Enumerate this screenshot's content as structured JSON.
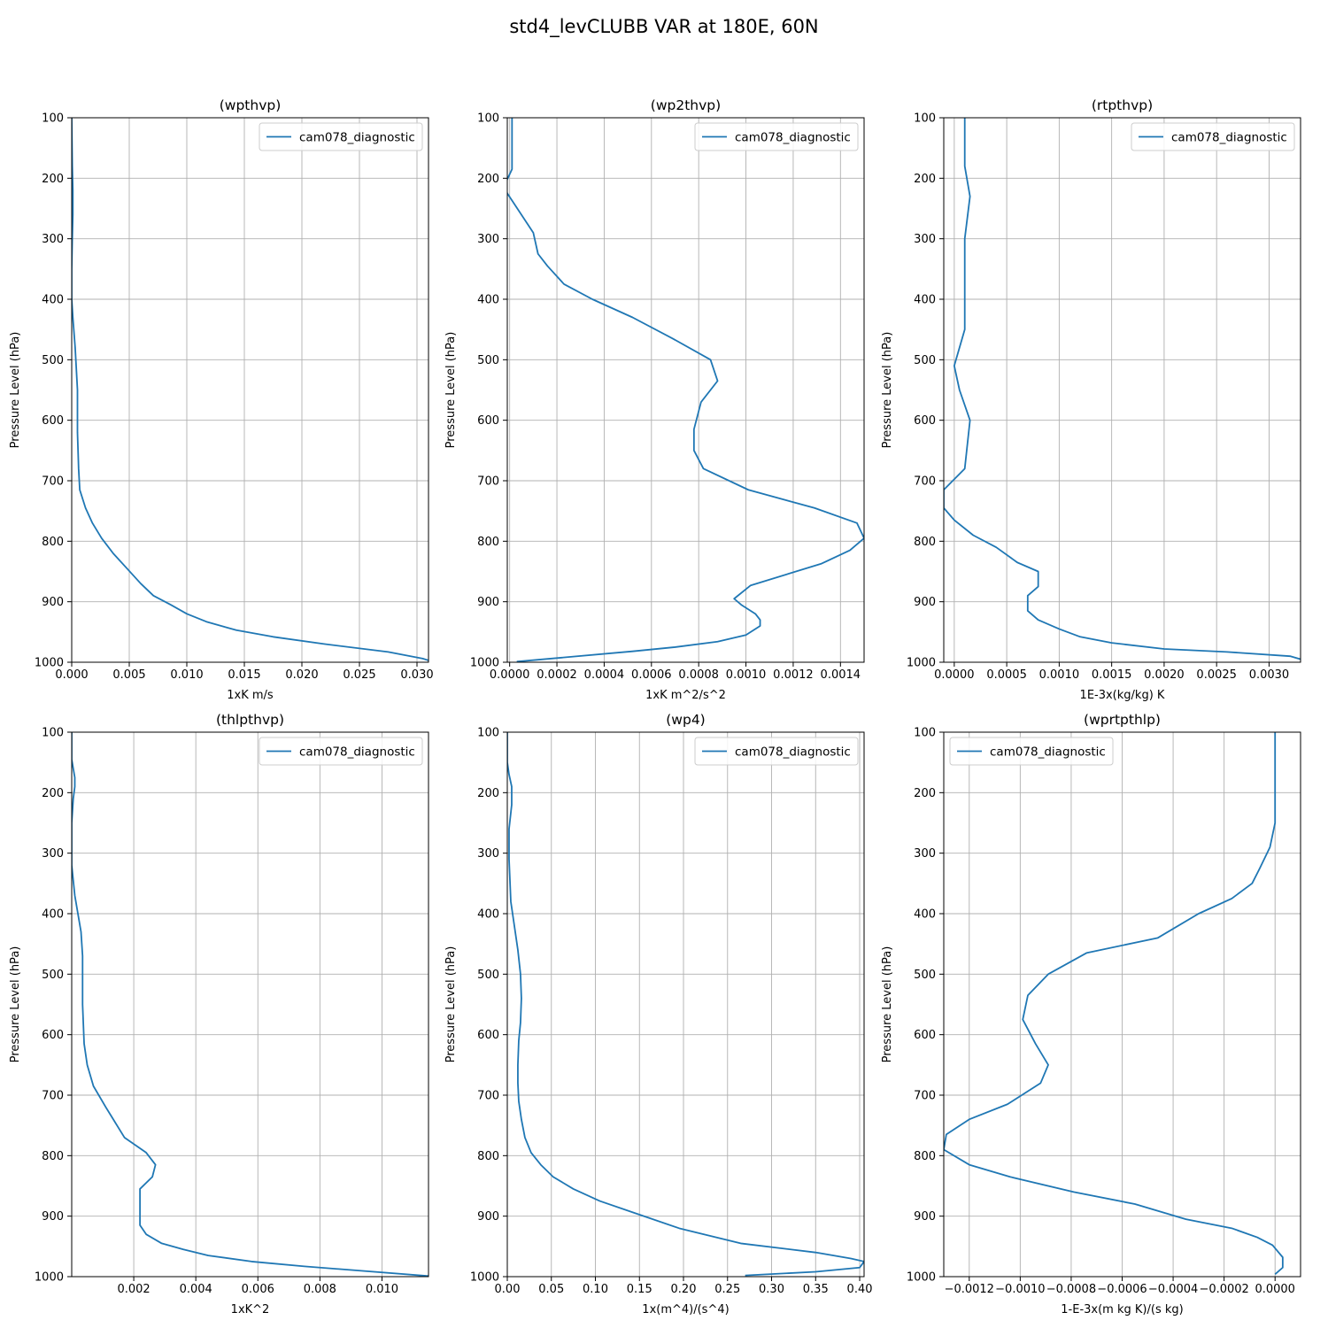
{
  "figure_title": "std4_levCLUBB VAR at 180E, 60N",
  "colors": {
    "series": "#1f77b4",
    "grid": "#b0b0b0",
    "frame": "#000000"
  },
  "chart_data": [
    {
      "type": "line",
      "title": "(wpthvp)",
      "xlabel": "1xK m/s",
      "ylabel": "Pressure Level (hPa)",
      "xlim": [
        0.0,
        0.031
      ],
      "ylim": [
        1000,
        100
      ],
      "y_inverted": true,
      "grid": true,
      "legend_position": "upper right",
      "xticks": [
        0.0,
        0.005,
        0.01,
        0.015,
        0.02,
        0.025,
        0.03
      ],
      "xtick_labels": [
        "0.000",
        "0.005",
        "0.010",
        "0.015",
        "0.020",
        "0.025",
        "0.030"
      ],
      "yticks": [
        100,
        200,
        300,
        400,
        500,
        600,
        700,
        800,
        900,
        1000
      ],
      "series": [
        {
          "name": "cam078_diagnostic",
          "x": [
            0.0,
            5e-05,
            0.0001,
            0.0001,
            5e-05,
            0.0,
            0.0,
            0.0001,
            0.0003,
            0.0005,
            0.0005,
            0.0006,
            0.0007,
            0.0012,
            0.0018,
            0.0026,
            0.0036,
            0.0048,
            0.006,
            0.0071,
            0.0086,
            0.01,
            0.0117,
            0.0143,
            0.0175,
            0.022,
            0.0275,
            0.0305,
            0.031
          ],
          "y": [
            100,
            180,
            220,
            260,
            300,
            350,
            400,
            430,
            480,
            550,
            620,
            680,
            715,
            745,
            770,
            795,
            820,
            845,
            870,
            890,
            905,
            920,
            933,
            947,
            958,
            970,
            983,
            994,
            997
          ]
        }
      ]
    },
    {
      "type": "line",
      "title": "(wp2thvp)",
      "xlabel": "1xK m^2/s^2",
      "ylabel": "Pressure Level (hPa)",
      "xlim": [
        -1e-05,
        0.0015
      ],
      "ylim": [
        1000,
        100
      ],
      "y_inverted": true,
      "grid": true,
      "legend_position": "upper right",
      "xticks": [
        0.0,
        0.0002,
        0.0004,
        0.0006,
        0.0008,
        0.001,
        0.0012,
        0.0014
      ],
      "xtick_labels": [
        "0.0000",
        "0.0002",
        "0.0004",
        "0.0006",
        "0.0008",
        "0.0010",
        "0.0012",
        "0.0014"
      ],
      "yticks": [
        100,
        200,
        300,
        400,
        500,
        600,
        700,
        800,
        900,
        1000
      ],
      "series": [
        {
          "name": "cam078_diagnostic",
          "x": [
            1e-05,
            1e-05,
            1e-05,
            1e-05,
            -2e-05,
            -1e-05,
            0.0001,
            0.00012,
            0.00016,
            0.00023,
            0.00035,
            0.00052,
            0.00069,
            0.00085,
            0.00088,
            0.00081,
            0.00078,
            0.00078,
            0.00082,
            0.00101,
            0.00129,
            0.00147,
            0.0015,
            0.00144,
            0.00132,
            0.00102,
            0.00095,
            0.00098,
            0.00104,
            0.00106,
            0.00106,
            0.001,
            0.00088,
            0.0007,
            0.00052,
            3e-05
          ],
          "y": [
            100,
            150,
            180,
            185,
            210,
            225,
            290,
            325,
            345,
            375,
            400,
            430,
            465,
            500,
            535,
            570,
            615,
            650,
            680,
            715,
            745,
            770,
            795,
            815,
            837,
            873,
            895,
            905,
            920,
            930,
            940,
            955,
            966,
            975,
            982,
            999
          ]
        }
      ]
    },
    {
      "type": "line",
      "title": "(rtpthvp)",
      "xlabel": "1E-3x(kg/kg) K",
      "ylabel": "Pressure Level (hPa)",
      "xlim": [
        -0.0001,
        0.0033
      ],
      "ylim": [
        1000,
        100
      ],
      "y_inverted": true,
      "grid": true,
      "legend_position": "upper right",
      "xticks": [
        0.0,
        0.0005,
        0.001,
        0.0015,
        0.002,
        0.0025,
        0.003
      ],
      "xtick_labels": [
        "0.0000",
        "0.0005",
        "0.0010",
        "0.0015",
        "0.0020",
        "0.0025",
        "0.0030"
      ],
      "yticks": [
        100,
        200,
        300,
        400,
        500,
        600,
        700,
        800,
        900,
        1000
      ],
      "series": [
        {
          "name": "cam078_diagnostic",
          "x": [
            0.0001,
            0.0001,
            0.00015,
            0.0001,
            0.0001,
            0.0001,
            5e-05,
            0.0,
            5e-05,
            0.00015,
            0.0001,
            -0.0001,
            -0.0001,
            -0.0001,
            0.0,
            0.00018,
            0.0004,
            0.0006,
            0.0008,
            0.0008,
            0.0007,
            0.0007,
            0.0008,
            0.001,
            0.0012,
            0.0015,
            0.002,
            0.0026,
            0.0032,
            0.0033
          ],
          "y": [
            100,
            180,
            230,
            300,
            400,
            450,
            480,
            510,
            550,
            600,
            680,
            715,
            740,
            745,
            765,
            790,
            810,
            835,
            850,
            875,
            890,
            915,
            930,
            945,
            958,
            968,
            978,
            983,
            990,
            995
          ]
        }
      ]
    },
    {
      "type": "line",
      "title": "(thlpthvp)",
      "xlabel": "1xK^2",
      "ylabel": "Pressure Level (hPa)",
      "xlim": [
        0.0,
        0.0115
      ],
      "ylim": [
        1000,
        100
      ],
      "y_inverted": true,
      "grid": true,
      "legend_position": "upper right",
      "xticks": [
        0.002,
        0.004,
        0.006,
        0.008,
        0.01
      ],
      "xtick_labels": [
        "0.002",
        "0.004",
        "0.006",
        "0.008",
        "0.010"
      ],
      "yticks": [
        100,
        200,
        300,
        400,
        500,
        600,
        700,
        800,
        900,
        1000
      ],
      "series": [
        {
          "name": "cam078_diagnostic",
          "x": [
            0.0,
            0.0,
            5e-05,
            0.0001,
            0.0001,
            5e-05,
            0.0,
            0.0,
            0.0001,
            0.0003,
            0.00035,
            0.00035,
            0.0004,
            0.0005,
            0.0007,
            0.0011,
            0.0014,
            0.0017,
            0.0024,
            0.0027,
            0.0026,
            0.0022,
            0.0022,
            0.0022,
            0.0024,
            0.0029,
            0.0036,
            0.0044,
            0.0058,
            0.0075,
            0.0115
          ],
          "y": [
            100,
            145,
            160,
            175,
            190,
            210,
            250,
            320,
            370,
            430,
            470,
            550,
            615,
            650,
            685,
            720,
            745,
            770,
            795,
            815,
            835,
            855,
            875,
            915,
            930,
            945,
            955,
            965,
            975,
            983,
            999
          ]
        }
      ]
    },
    {
      "type": "line",
      "title": "(wp4)",
      "xlabel": "1x(m^4)/(s^4)",
      "ylabel": "Pressure Level (hPa)",
      "xlim": [
        0.0,
        0.405
      ],
      "ylim": [
        1000,
        100
      ],
      "y_inverted": true,
      "grid": true,
      "legend_position": "upper right",
      "xticks": [
        0.0,
        0.05,
        0.1,
        0.15,
        0.2,
        0.25,
        0.3,
        0.35,
        0.4
      ],
      "xtick_labels": [
        "0.00",
        "0.05",
        "0.10",
        "0.15",
        "0.20",
        "0.25",
        "0.30",
        "0.35",
        "0.40"
      ],
      "yticks": [
        100,
        200,
        300,
        400,
        500,
        600,
        700,
        800,
        900,
        1000
      ],
      "series": [
        {
          "name": "cam078_diagnostic",
          "x": [
            0.0,
            0.0,
            0.002,
            0.005,
            0.005,
            0.002,
            0.002,
            0.004,
            0.008,
            0.012,
            0.015,
            0.016,
            0.015,
            0.013,
            0.012,
            0.012,
            0.013,
            0.016,
            0.02,
            0.027,
            0.038,
            0.052,
            0.075,
            0.105,
            0.145,
            0.195,
            0.265,
            0.35,
            0.39,
            0.405,
            0.4,
            0.35,
            0.27
          ],
          "y": [
            100,
            150,
            170,
            190,
            220,
            260,
            310,
            380,
            420,
            460,
            500,
            540,
            580,
            610,
            650,
            680,
            710,
            740,
            770,
            795,
            815,
            835,
            855,
            875,
            895,
            920,
            945,
            960,
            970,
            975,
            985,
            992,
            998
          ]
        }
      ]
    },
    {
      "type": "line",
      "title": "(wprtpthlp)",
      "xlabel": "1-E-3x(m kg K)/(s kg)",
      "ylabel": "Pressure Level (hPa)",
      "xlim": [
        -0.0013,
        0.0001
      ],
      "ylim": [
        1000,
        100
      ],
      "y_inverted": true,
      "grid": true,
      "legend_position": "upper left",
      "xticks": [
        -0.0012,
        -0.001,
        -0.0008,
        -0.0006,
        -0.0004,
        -0.0002,
        0.0
      ],
      "xtick_labels": [
        "−0.0012",
        "−0.0010",
        "−0.0008",
        "−0.0006",
        "−0.0004",
        "−0.0002",
        "0.0000"
      ],
      "yticks": [
        100,
        200,
        300,
        400,
        500,
        600,
        700,
        800,
        900,
        1000
      ],
      "series": [
        {
          "name": "cam078_diagnostic",
          "x": [
            0.0,
            0.0,
            0.0,
            -2e-05,
            -6e-05,
            -9e-05,
            -0.00017,
            -0.0003,
            -0.00046,
            -0.00074,
            -0.00089,
            -0.00097,
            -0.00099,
            -0.00094,
            -0.00089,
            -0.00092,
            -0.00105,
            -0.0012,
            -0.00129,
            -0.0013,
            -0.0012,
            -0.00104,
            -0.00079,
            -0.00055,
            -0.00035,
            -0.00017,
            -7e-05,
            -1e-05,
            3e-05,
            3e-05,
            0.0
          ],
          "y": [
            100,
            200,
            250,
            290,
            325,
            350,
            375,
            400,
            440,
            465,
            500,
            535,
            575,
            615,
            650,
            680,
            715,
            740,
            765,
            790,
            815,
            835,
            860,
            880,
            905,
            920,
            935,
            948,
            968,
            985,
            996
          ]
        }
      ]
    }
  ]
}
